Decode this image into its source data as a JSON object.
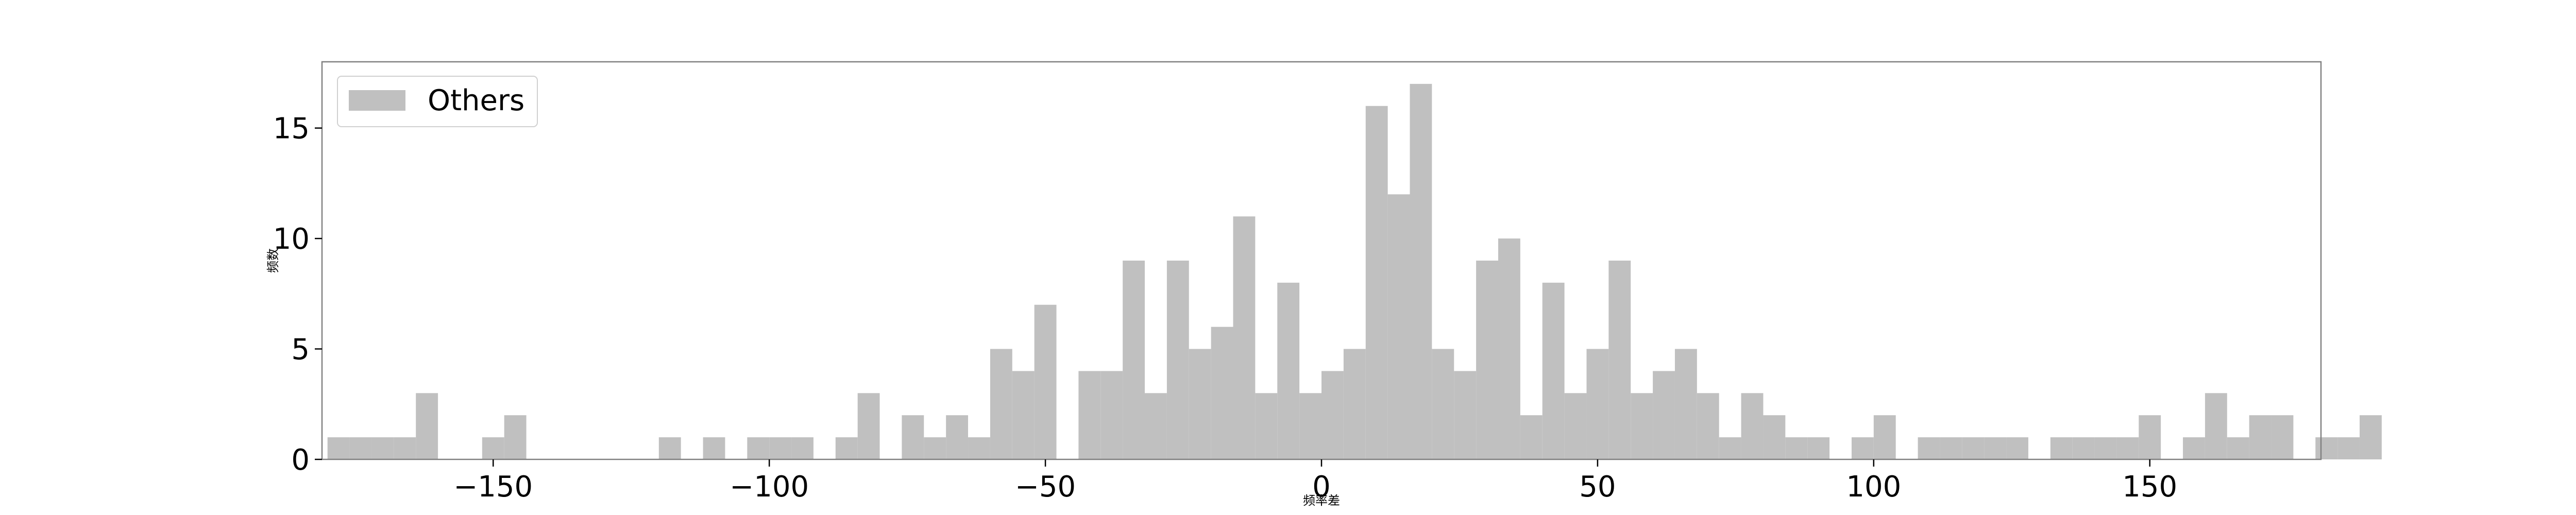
{
  "chart_data": {
    "type": "bar",
    "title": "",
    "xlabel": "频率差",
    "ylabel": "频数",
    "xlim": [
      -181,
      181
    ],
    "ylim": [
      0,
      18
    ],
    "xticks": [
      -150,
      -100,
      -50,
      0,
      50,
      100,
      150
    ],
    "xtick_labels": [
      "−150",
      "−100",
      "−50",
      "0",
      "50",
      "100",
      "150"
    ],
    "yticks": [
      0,
      5,
      10,
      15
    ],
    "ytick_labels": [
      "0",
      "5",
      "10",
      "15"
    ],
    "bin_start": -180,
    "bin_width": 4,
    "values": [
      1,
      1,
      1,
      1,
      3,
      0,
      0,
      1,
      2,
      0,
      0,
      0,
      0,
      0,
      0,
      1,
      0,
      1,
      0,
      1,
      1,
      1,
      0,
      1,
      3,
      0,
      2,
      1,
      2,
      1,
      5,
      4,
      7,
      0,
      4,
      4,
      9,
      3,
      9,
      5,
      6,
      11,
      3,
      8,
      3,
      4,
      5,
      16,
      12,
      17,
      5,
      4,
      9,
      10,
      2,
      8,
      3,
      5,
      9,
      3,
      4,
      5,
      3,
      1,
      3,
      2,
      1,
      1,
      0,
      1,
      2,
      0,
      1,
      1,
      1,
      1,
      1,
      0,
      1,
      1,
      1,
      1,
      2,
      0,
      1,
      3,
      1,
      2,
      2,
      0,
      1,
      1,
      2
    ],
    "grid": false,
    "legend_position": "upper-left",
    "series": [
      {
        "name": "Others",
        "color": "#c0c0c0"
      }
    ]
  }
}
